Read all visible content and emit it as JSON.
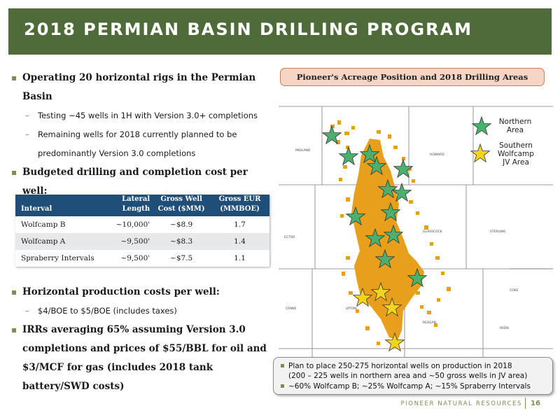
{
  "slide": {
    "title": "2018 PERMIAN BASIN DRILLING PROGRAM"
  },
  "bullets_top": {
    "rigs_line1": "Operating 20 horizontal rigs in the Permian",
    "rigs_line2": "Basin",
    "sub1": "Testing ~45 wells in 1H with Version 3.0+ completions",
    "sub2_line1": "Remaining wells for 2018 currently planned to be",
    "sub2_line2": "predominantly Version 3.0 completions",
    "cost": "Budgeted drilling and completion cost per well:"
  },
  "cost_table": {
    "headers": {
      "interval": "Interval",
      "lateral_1": "Lateral",
      "lateral_2": "Length",
      "cost_1": "Gross Well",
      "cost_2": "Cost ($MM)",
      "eur_1": "Gross EUR",
      "eur_2": "(MMBOE)"
    },
    "rows": [
      {
        "interval": "Wolfcamp B",
        "lateral": "~10,000'",
        "cost": "~$8.9",
        "eur": "1.7"
      },
      {
        "interval": "Wolfcamp A",
        "lateral": "~9,500'",
        "cost": "~$8.3",
        "eur": "1.4"
      },
      {
        "interval": "Spraberry Intervals",
        "lateral": "~9,500'",
        "cost": "~$7.5",
        "eur": "1.1"
      }
    ]
  },
  "bullets_bottom": {
    "prod_costs": "Horizontal production costs per well:",
    "prod_costs_sub": "$4/BOE to $5/BOE (includes taxes)",
    "irr_line1": "IRRs averaging 65% assuming Version 3.0",
    "irr_line2": "completions and prices of $55/BBL for oil and",
    "irr_line3": "$3/MCF for gas (includes 2018 tank",
    "irr_line4": "battery/SWD costs)"
  },
  "map": {
    "title": "Pioneer's Acreage Position and 2018 Drilling Areas",
    "legend_north_1": "Northern",
    "legend_north_2": "Area",
    "legend_south_1": "Southern",
    "legend_south_2": "Wolfcamp",
    "legend_south_3": "JV Area",
    "colors": {
      "acreage": "#e8a01c",
      "northern_star": "#4caf6e",
      "southern_star": "#f2d41f",
      "county_lines": "#6e6e6e"
    }
  },
  "callout": {
    "line1": "Plan to place 250-275 horizontal wells on production in 2018",
    "line2": "(200 – 225 wells in northern area and ~50 gross wells in JV area)",
    "line3": "~60% Wolfcamp B; ~25% Wolfcamp A; ~15% Spraberry Intervals"
  },
  "footer": {
    "company": "PIONEER NATURAL RESOURCES",
    "page_number": "16"
  },
  "theme": {
    "title_bar": "#4f6b3a",
    "accent": "#7a8f4e",
    "table_header": "#1f4e79"
  }
}
